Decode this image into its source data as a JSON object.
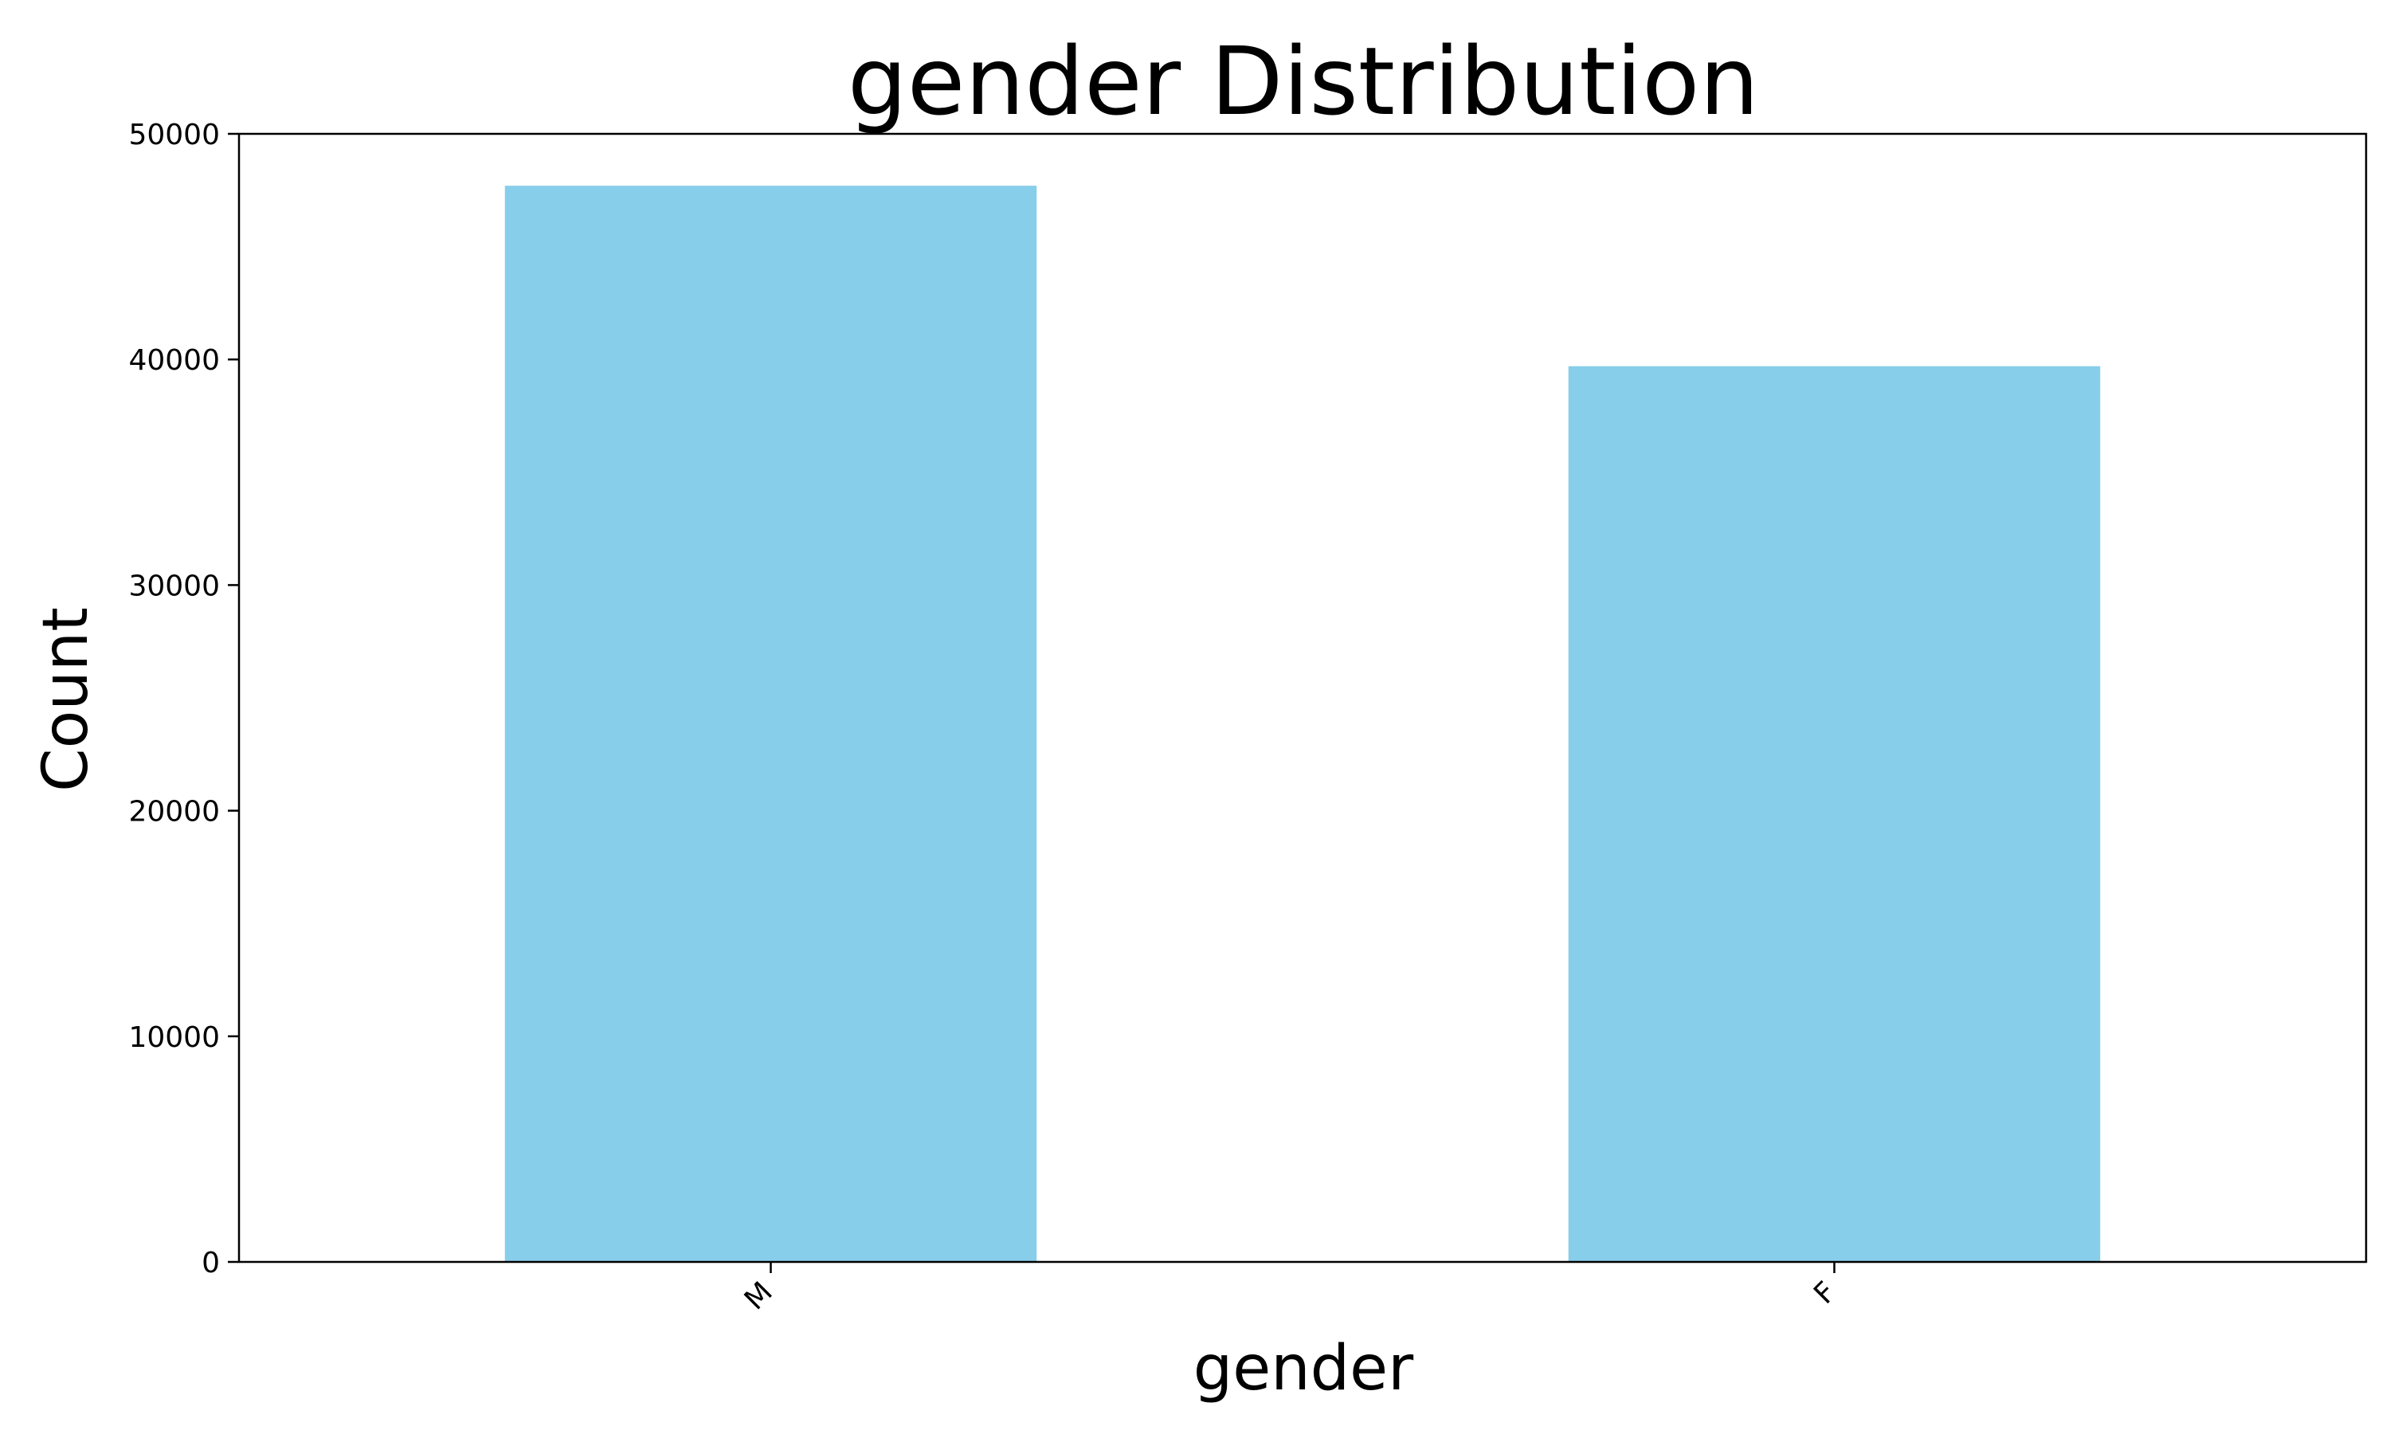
{
  "chart_data": {
    "type": "bar",
    "title": "gender Distribution",
    "xlabel": "gender",
    "ylabel": "Count",
    "categories": [
      "M",
      "F"
    ],
    "values": [
      47700,
      39700
    ],
    "ylim": [
      0,
      50000
    ],
    "yticks": [
      0,
      10000,
      20000,
      30000,
      40000,
      50000
    ],
    "ytick_labels": [
      "0",
      "10000",
      "20000",
      "30000",
      "40000",
      "50000"
    ],
    "bar_color": "#87CEEB",
    "grid": false,
    "legend": "none"
  }
}
